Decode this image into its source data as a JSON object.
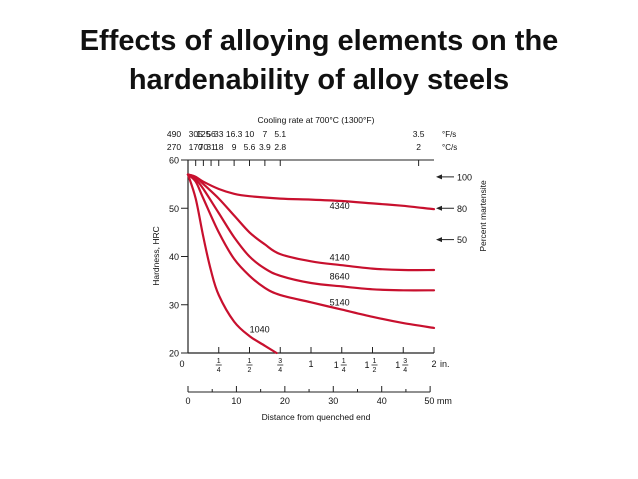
{
  "slide": {
    "title_line1": "Effects of alloying elements on the",
    "title_line2": "hardenability of alloy steels"
  },
  "chart_data": {
    "type": "line",
    "ylabel": "Hardness, HRC",
    "xlabel": "Distance from quenched end",
    "top_axis_title": "Cooling rate at 700°C (1300°F)",
    "right_axis_label": "Percent martensite",
    "ylim": [
      20,
      60
    ],
    "xlim_in": [
      0,
      2
    ],
    "y_ticks": [
      "20",
      "30",
      "40",
      "50",
      "60"
    ],
    "x_in_ticks": [
      {
        "v": 0,
        "label": "0"
      },
      {
        "v": 0.25,
        "label": "1/4"
      },
      {
        "v": 0.5,
        "label": "1/2"
      },
      {
        "v": 0.75,
        "label": "3/4"
      },
      {
        "v": 1,
        "label": "1"
      },
      {
        "v": 1.25,
        "label": "1 1/4"
      },
      {
        "v": 1.5,
        "label": "1 1/2"
      },
      {
        "v": 1.75,
        "label": "1 3/4"
      },
      {
        "v": 2,
        "label": "2 in."
      }
    ],
    "x_mm_ticks": [
      {
        "v": 0,
        "label": "0"
      },
      {
        "v": 10,
        "label": "10"
      },
      {
        "v": 20,
        "label": "20"
      },
      {
        "v": 30,
        "label": "30"
      },
      {
        "v": 40,
        "label": "40"
      },
      {
        "v": 50,
        "label": "50 mm"
      }
    ],
    "cooling_rate_F": [
      {
        "v": 0.0,
        "label": "490"
      },
      {
        "v": 0.0625,
        "label": "305"
      },
      {
        "v": 0.125,
        "label": "125"
      },
      {
        "v": 0.1875,
        "label": "56"
      },
      {
        "v": 0.25,
        "label": "33"
      },
      {
        "v": 0.375,
        "label": "16.3"
      },
      {
        "v": 0.5,
        "label": "10"
      },
      {
        "v": 0.625,
        "label": "7"
      },
      {
        "v": 0.75,
        "label": "5.1"
      },
      {
        "v": 1.875,
        "label": "3.5"
      }
    ],
    "cooling_rate_F_unit": "°F/s",
    "cooling_rate_C": [
      {
        "v": 0.0,
        "label": "270"
      },
      {
        "v": 0.0625,
        "label": "170"
      },
      {
        "v": 0.125,
        "label": "70"
      },
      {
        "v": 0.1875,
        "label": "31"
      },
      {
        "v": 0.25,
        "label": "18"
      },
      {
        "v": 0.375,
        "label": "9"
      },
      {
        "v": 0.5,
        "label": "5.6"
      },
      {
        "v": 0.625,
        "label": "3.9"
      },
      {
        "v": 0.75,
        "label": "2.8"
      },
      {
        "v": 1.875,
        "label": "2"
      }
    ],
    "cooling_rate_C_unit": "°C/s",
    "martensite_markers": [
      {
        "hrc": 56.5,
        "label": "100"
      },
      {
        "hrc": 50.0,
        "label": "80"
      },
      {
        "hrc": 43.5,
        "label": "50"
      }
    ],
    "series": [
      {
        "name": "4340",
        "label_at": [
          1.2,
          49.8
        ],
        "points": [
          [
            0,
            57
          ],
          [
            0.0625,
            56.5
          ],
          [
            0.125,
            55.5
          ],
          [
            0.25,
            54
          ],
          [
            0.375,
            53
          ],
          [
            0.5,
            52.5
          ],
          [
            0.75,
            52
          ],
          [
            1,
            51.8
          ],
          [
            1.25,
            51.5
          ],
          [
            1.5,
            51
          ],
          [
            1.75,
            50.5
          ],
          [
            2,
            49.8
          ]
        ]
      },
      {
        "name": "4140",
        "label_at": [
          1.2,
          39.2
        ],
        "points": [
          [
            0,
            57
          ],
          [
            0.0625,
            56.5
          ],
          [
            0.125,
            55
          ],
          [
            0.25,
            52
          ],
          [
            0.375,
            48.5
          ],
          [
            0.5,
            45
          ],
          [
            0.625,
            42.5
          ],
          [
            0.75,
            40.5
          ],
          [
            1,
            39
          ],
          [
            1.25,
            38.2
          ],
          [
            1.5,
            37.5
          ],
          [
            1.75,
            37.2
          ],
          [
            2,
            37.2
          ]
        ]
      },
      {
        "name": "8640",
        "label_at": [
          1.2,
          35.2
        ],
        "points": [
          [
            0,
            57
          ],
          [
            0.0625,
            56
          ],
          [
            0.125,
            54
          ],
          [
            0.25,
            49
          ],
          [
            0.375,
            44
          ],
          [
            0.5,
            40
          ],
          [
            0.625,
            37.5
          ],
          [
            0.75,
            36
          ],
          [
            1,
            34.5
          ],
          [
            1.25,
            33.8
          ],
          [
            1.5,
            33.2
          ],
          [
            1.75,
            33
          ],
          [
            2,
            33
          ]
        ]
      },
      {
        "name": "5140",
        "label_at": [
          1.2,
          29.8
        ],
        "points": [
          [
            0,
            57
          ],
          [
            0.0625,
            55.5
          ],
          [
            0.125,
            52
          ],
          [
            0.25,
            45
          ],
          [
            0.375,
            39.5
          ],
          [
            0.5,
            36
          ],
          [
            0.625,
            33.5
          ],
          [
            0.75,
            32
          ],
          [
            1,
            30.5
          ],
          [
            1.25,
            29
          ],
          [
            1.5,
            27.5
          ],
          [
            1.75,
            26.2
          ],
          [
            2,
            25.2
          ]
        ]
      },
      {
        "name": "1040",
        "label_at": [
          0.55,
          24.3
        ],
        "points": [
          [
            0,
            57
          ],
          [
            0.0625,
            52
          ],
          [
            0.125,
            44
          ],
          [
            0.1875,
            37
          ],
          [
            0.25,
            32
          ],
          [
            0.375,
            26.5
          ],
          [
            0.5,
            23.5
          ],
          [
            0.625,
            21.5
          ],
          [
            0.72,
            20
          ]
        ]
      }
    ]
  }
}
